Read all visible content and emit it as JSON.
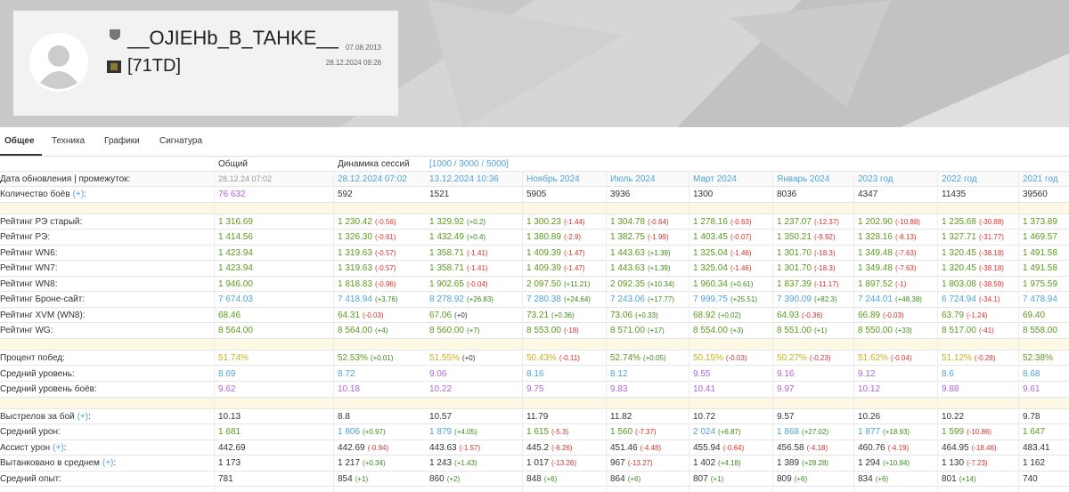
{
  "profile": {
    "name": "__OJIEHb_B_TAHKE__",
    "clan": "[71TD]",
    "created": "07.08.2013",
    "updated": "28.12.2024 09:28"
  },
  "tabs": [
    "Общее",
    "Техника",
    "Графики",
    "Сигнатура"
  ],
  "table": {
    "heads": [
      "Общий",
      "Динамика сессий",
      "[1000 / 3000 / 5000]"
    ],
    "date_label": "Дата обновления | промежуток:",
    "periods": [
      [
        "28.12.24 07:02",
        "gray"
      ],
      [
        "28.12.2024 07:02",
        "b"
      ],
      [
        "13.12.2024 10:36",
        "b"
      ],
      [
        "Ноябрь 2024",
        "b"
      ],
      [
        "Июль 2024",
        "b"
      ],
      [
        "Март 2024",
        "b"
      ],
      [
        "Январь 2024",
        "b"
      ],
      [
        "2023 год",
        "b"
      ],
      [
        "2022 год",
        "b"
      ],
      [
        "2021 год",
        "b"
      ]
    ],
    "sections": [
      [
        {
          "label": "Количество боёв",
          "link": "(+)",
          "end": ":",
          "cells": [
            [
              "76 632",
              "",
              "p"
            ],
            [
              "592",
              "",
              "k"
            ],
            [
              "1521",
              "",
              "k"
            ],
            [
              "5905",
              "",
              "k"
            ],
            [
              "3936",
              "",
              "k"
            ],
            [
              "1300",
              "",
              "k"
            ],
            [
              "8036",
              "",
              "k"
            ],
            [
              "4347",
              "",
              "k"
            ],
            [
              "11435",
              "",
              "k"
            ],
            [
              "39560",
              "",
              "k"
            ]
          ]
        }
      ],
      [
        {
          "label": "Рейтинг РЭ старый:",
          "cells": [
            [
              "1 316.69",
              "",
              "g"
            ],
            [
              "1 230.42",
              "(-0.56)",
              "g"
            ],
            [
              "1 329.92",
              "(+0.2)",
              "g"
            ],
            [
              "1 300.23",
              "(-1.44)",
              "g"
            ],
            [
              "1 304.78",
              "(-0.64)",
              "g"
            ],
            [
              "1 278.16",
              "(-0.63)",
              "g"
            ],
            [
              "1 237.07",
              "(-12.37)",
              "g"
            ],
            [
              "1 202.90",
              "(-10.88)",
              "g"
            ],
            [
              "1 235.68",
              "(-30.88)",
              "g"
            ],
            [
              "1 373.89",
              "",
              "g"
            ]
          ]
        },
        {
          "label": "Рейтинг РЭ:",
          "cells": [
            [
              "1 414.56",
              "",
              "g"
            ],
            [
              "1 326.30",
              "(-0.61)",
              "g"
            ],
            [
              "1 432.49",
              "(+0.4)",
              "g"
            ],
            [
              "1 380.89",
              "(-2.9)",
              "g"
            ],
            [
              "1 382.75",
              "(-1.99)",
              "g"
            ],
            [
              "1 403.45",
              "(-0.07)",
              "g"
            ],
            [
              "1 350.21",
              "(-9.92)",
              "g"
            ],
            [
              "1 328.16",
              "(-8.13)",
              "g"
            ],
            [
              "1 327.71",
              "(-31.77)",
              "g"
            ],
            [
              "1 469.57",
              "",
              "g"
            ]
          ]
        },
        {
          "label": "Рейтинг WN6:",
          "cells": [
            [
              "1 423.94",
              "",
              "g"
            ],
            [
              "1 319.63",
              "(-0.57)",
              "g"
            ],
            [
              "1 358.71",
              "(-1.41)",
              "g"
            ],
            [
              "1 409.39",
              "(-1.47)",
              "g"
            ],
            [
              "1 443.63",
              "(+1.39)",
              "g"
            ],
            [
              "1 325.04",
              "(-1.46)",
              "g"
            ],
            [
              "1 301.70",
              "(-18.3)",
              "g"
            ],
            [
              "1 349.48",
              "(-7.63)",
              "g"
            ],
            [
              "1 320.45",
              "(-38.18)",
              "g"
            ],
            [
              "1 491.58",
              "",
              "g"
            ]
          ]
        },
        {
          "label": "Рейтинг WN7:",
          "cells": [
            [
              "1 423.94",
              "",
              "g"
            ],
            [
              "1 319.63",
              "(-0.57)",
              "g"
            ],
            [
              "1 358.71",
              "(-1.41)",
              "g"
            ],
            [
              "1 409.39",
              "(-1.47)",
              "g"
            ],
            [
              "1 443.63",
              "(+1.39)",
              "g"
            ],
            [
              "1 325.04",
              "(-1.46)",
              "g"
            ],
            [
              "1 301.70",
              "(-18.3)",
              "g"
            ],
            [
              "1 349.48",
              "(-7.63)",
              "g"
            ],
            [
              "1 320.45",
              "(-38.18)",
              "g"
            ],
            [
              "1 491.58",
              "",
              "g"
            ]
          ]
        },
        {
          "label": "Рейтинг WN8:",
          "cells": [
            [
              "1 946.00",
              "",
              "g"
            ],
            [
              "1 818.83",
              "(-0.96)",
              "g"
            ],
            [
              "1 902.65",
              "(-0.04)",
              "g"
            ],
            [
              "2 097.50",
              "(+11.21)",
              "g"
            ],
            [
              "2 092.35",
              "(+10.34)",
              "g"
            ],
            [
              "1 960.34",
              "(+0.61)",
              "g"
            ],
            [
              "1 837.39",
              "(-11.17)",
              "g"
            ],
            [
              "1 897.52",
              "(-1)",
              "g"
            ],
            [
              "1 803.08",
              "(-38.59)",
              "g"
            ],
            [
              "1 975.59",
              "",
              "g"
            ]
          ]
        },
        {
          "label": "Рейтинг Броне-сайт:",
          "cells": [
            [
              "7 674.03",
              "",
              "b"
            ],
            [
              "7 418.94",
              "(+3.76)",
              "b"
            ],
            [
              "8 278.92",
              "(+26.83)",
              "b"
            ],
            [
              "7 280.38",
              "(+24.64)",
              "b"
            ],
            [
              "7 243.06",
              "(+17.77)",
              "b"
            ],
            [
              "7 999.75",
              "(+25.51)",
              "b"
            ],
            [
              "7 390.09",
              "(+82.3)",
              "b"
            ],
            [
              "7 244.01",
              "(+48.38)",
              "b"
            ],
            [
              "6 724.94",
              "(-34.1)",
              "b"
            ],
            [
              "7 478.94",
              "",
              "b"
            ]
          ]
        },
        {
          "label": "Рейтинг XVM (WN8):",
          "cells": [
            [
              "68.46",
              "",
              "g"
            ],
            [
              "64.31",
              "(-0.03)",
              "g"
            ],
            [
              "67.06",
              "(+0)",
              "g"
            ],
            [
              "73.21",
              "(+0.36)",
              "g"
            ],
            [
              "73.06",
              "(+0.33)",
              "g"
            ],
            [
              "68.92",
              "(+0.02)",
              "g"
            ],
            [
              "64.93",
              "(-0.36)",
              "g"
            ],
            [
              "66.89",
              "(-0.03)",
              "g"
            ],
            [
              "63.79",
              "(-1.24)",
              "g"
            ],
            [
              "69.40",
              "",
              "g"
            ]
          ]
        },
        {
          "label": "Рейтинг WG:",
          "cells": [
            [
              "8 564.00",
              "",
              "g"
            ],
            [
              "8 564.00",
              "(+4)",
              "g"
            ],
            [
              "8 560.00",
              "(+7)",
              "g"
            ],
            [
              "8 553.00",
              "(-18)",
              "g"
            ],
            [
              "8 571.00",
              "(+17)",
              "g"
            ],
            [
              "8 554.00",
              "(+3)",
              "g"
            ],
            [
              "8 551.00",
              "(+1)",
              "g"
            ],
            [
              "8 550.00",
              "(+33)",
              "g"
            ],
            [
              "8 517.00",
              "(-41)",
              "g"
            ],
            [
              "8 558.00",
              "",
              "g"
            ]
          ]
        }
      ],
      [
        {
          "label": "Процент побед:",
          "cells": [
            [
              "51.74%",
              "",
              "y"
            ],
            [
              "52.53%",
              "(+0.01)",
              "g"
            ],
            [
              "51.55%",
              "(+0)",
              "y"
            ],
            [
              "50.43%",
              "(-0.11)",
              "y"
            ],
            [
              "52.74%",
              "(+0.05)",
              "g"
            ],
            [
              "50.15%",
              "(-0.03)",
              "y"
            ],
            [
              "50.27%",
              "(-0.23)",
              "y"
            ],
            [
              "51.62%",
              "(-0.04)",
              "y"
            ],
            [
              "51.12%",
              "(-0.28)",
              "y"
            ],
            [
              "52.38%",
              "",
              "g"
            ]
          ]
        },
        {
          "label": "Средний уровень:",
          "cells": [
            [
              "8.69",
              "",
              "b"
            ],
            [
              "8.72",
              "",
              "b"
            ],
            [
              "9.06",
              "",
              "p"
            ],
            [
              "8.16",
              "",
              "b"
            ],
            [
              "8.12",
              "",
              "b"
            ],
            [
              "9.55",
              "",
              "p"
            ],
            [
              "9.16",
              "",
              "p"
            ],
            [
              "9.12",
              "",
              "p"
            ],
            [
              "8.6",
              "",
              "b"
            ],
            [
              "8.68",
              "",
              "b"
            ]
          ]
        },
        {
          "label": "Средний уровень боёв:",
          "cells": [
            [
              "9.62",
              "",
              "p"
            ],
            [
              "10.18",
              "",
              "p"
            ],
            [
              "10.22",
              "",
              "p"
            ],
            [
              "9.75",
              "",
              "p"
            ],
            [
              "9.83",
              "",
              "p"
            ],
            [
              "10.41",
              "",
              "p"
            ],
            [
              "9.97",
              "",
              "p"
            ],
            [
              "10.12",
              "",
              "p"
            ],
            [
              "9.88",
              "",
              "p"
            ],
            [
              "9.61",
              "",
              "p"
            ]
          ]
        }
      ],
      [
        {
          "label": "Выстрелов за бой",
          "link": "(+)",
          "end": ":",
          "cells": [
            [
              "10.13",
              "",
              "k"
            ],
            [
              "8.8",
              "",
              "k"
            ],
            [
              "10.57",
              "",
              "k"
            ],
            [
              "11.79",
              "",
              "k"
            ],
            [
              "11.82",
              "",
              "k"
            ],
            [
              "10.72",
              "",
              "k"
            ],
            [
              "9.57",
              "",
              "k"
            ],
            [
              "10.26",
              "",
              "k"
            ],
            [
              "10.22",
              "",
              "k"
            ],
            [
              "9.78",
              "",
              "k"
            ]
          ]
        },
        {
          "label": "Средний урон:",
          "cells": [
            [
              "1 681",
              "",
              "g"
            ],
            [
              "1 806",
              "(+0.97)",
              "b"
            ],
            [
              "1 879",
              "(+4.05)",
              "b"
            ],
            [
              "1 615",
              "(-5.3)",
              "g"
            ],
            [
              "1 560",
              "(-7.37)",
              "g"
            ],
            [
              "2 024",
              "(+6.87)",
              "b"
            ],
            [
              "1 868",
              "(+27.02)",
              "b"
            ],
            [
              "1 877",
              "(+18.93)",
              "b"
            ],
            [
              "1 599",
              "(-10.86)",
              "g"
            ],
            [
              "1 647",
              "",
              "g"
            ]
          ]
        },
        {
          "label": "Ассист урон",
          "link": "(+)",
          "end": ":",
          "cells": [
            [
              "442.69",
              "",
              "k"
            ],
            [
              "442.69",
              "(-0.94)",
              "k"
            ],
            [
              "443.63",
              "(-1.57)",
              "k"
            ],
            [
              "445.2",
              "(-6.26)",
              "k"
            ],
            [
              "451.46",
              "(-4.48)",
              "k"
            ],
            [
              "455.94",
              "(-0.64)",
              "k"
            ],
            [
              "456.58",
              "(-4.18)",
              "k"
            ],
            [
              "460.76",
              "(-4.19)",
              "k"
            ],
            [
              "464.95",
              "(-18.46)",
              "k"
            ],
            [
              "483.41",
              "",
              "k"
            ]
          ]
        },
        {
          "label": "Вытанковано в среднем",
          "link": "(+)",
          "end": ":",
          "cells": [
            [
              "1 173",
              "",
              "k"
            ],
            [
              "1 217",
              "(+0.34)",
              "k"
            ],
            [
              "1 243",
              "(+1.43)",
              "k"
            ],
            [
              "1 017",
              "(-13.26)",
              "k"
            ],
            [
              "967",
              "(-13.27)",
              "k"
            ],
            [
              "1 402",
              "(+4.18)",
              "k"
            ],
            [
              "1 389",
              "(+28.28)",
              "k"
            ],
            [
              "1 294",
              "(+10.94)",
              "k"
            ],
            [
              "1 130",
              "(-7.23)",
              "k"
            ],
            [
              "1 162",
              "",
              "k"
            ]
          ]
        },
        {
          "label": "Средний опыт:",
          "cells": [
            [
              "781",
              "",
              "k"
            ],
            [
              "854",
              "(+1)",
              "k"
            ],
            [
              "860",
              "(+2)",
              "k"
            ],
            [
              "848",
              "(+6)",
              "k"
            ],
            [
              "864",
              "(+6)",
              "k"
            ],
            [
              "807",
              "(+1)",
              "k"
            ],
            [
              "809",
              "(+6)",
              "k"
            ],
            [
              "834",
              "(+6)",
              "k"
            ],
            [
              "801",
              "(+14)",
              "k"
            ],
            [
              "740",
              "",
              "k"
            ]
          ]
        }
      ]
    ]
  }
}
